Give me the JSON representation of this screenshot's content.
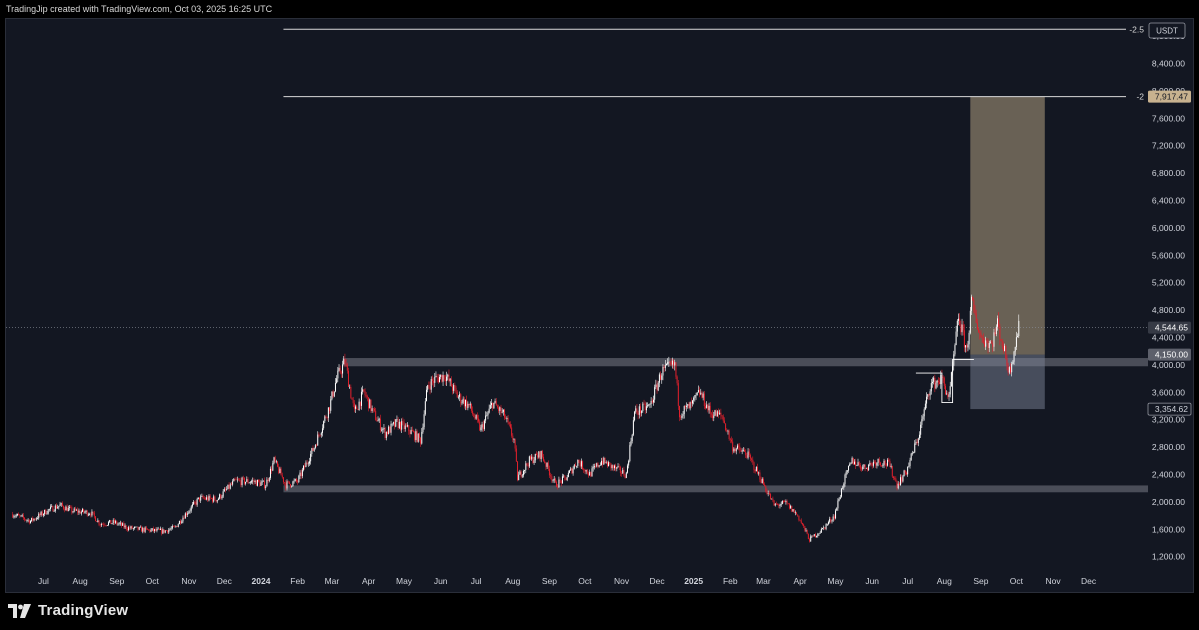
{
  "header": {
    "attribution": "TradingJip created with TradingView.com, Oct 03, 2025 16:25 UTC"
  },
  "footer": {
    "brand": "TradingView"
  },
  "colors": {
    "background": "#131722",
    "up": "#ffffff",
    "down": "#e0202c",
    "zone": "#5d606b",
    "projection": "#c8b28f",
    "price_label": "#363a45"
  },
  "chart_data": {
    "type": "candlestick",
    "currency": "USDT",
    "x_axis": {
      "range": [
        "2023-06-01",
        "2025-12-31"
      ],
      "ticks": [
        {
          "date": "2023-07-01",
          "label": "Jul"
        },
        {
          "date": "2023-08-01",
          "label": "Aug"
        },
        {
          "date": "2023-09-01",
          "label": "Sep"
        },
        {
          "date": "2023-10-01",
          "label": "Oct"
        },
        {
          "date": "2023-11-01",
          "label": "Nov"
        },
        {
          "date": "2023-12-01",
          "label": "Dec"
        },
        {
          "date": "2024-01-01",
          "label": "2024"
        },
        {
          "date": "2024-02-01",
          "label": "Feb"
        },
        {
          "date": "2024-03-01",
          "label": "Mar"
        },
        {
          "date": "2024-04-01",
          "label": "Apr"
        },
        {
          "date": "2024-05-01",
          "label": "May"
        },
        {
          "date": "2024-06-01",
          "label": "Jun"
        },
        {
          "date": "2024-07-01",
          "label": "Jul"
        },
        {
          "date": "2024-08-01",
          "label": "Aug"
        },
        {
          "date": "2024-09-01",
          "label": "Sep"
        },
        {
          "date": "2024-10-01",
          "label": "Oct"
        },
        {
          "date": "2024-11-01",
          "label": "Nov"
        },
        {
          "date": "2024-12-01",
          "label": "Dec"
        },
        {
          "date": "2025-01-01",
          "label": "2025"
        },
        {
          "date": "2025-02-01",
          "label": "Feb"
        },
        {
          "date": "2025-03-01",
          "label": "Mar"
        },
        {
          "date": "2025-04-01",
          "label": "Apr"
        },
        {
          "date": "2025-05-01",
          "label": "May"
        },
        {
          "date": "2025-06-01",
          "label": "Jun"
        },
        {
          "date": "2025-07-01",
          "label": "Jul"
        },
        {
          "date": "2025-08-01",
          "label": "Aug"
        },
        {
          "date": "2025-09-01",
          "label": "Sep"
        },
        {
          "date": "2025-10-01",
          "label": "Oct"
        },
        {
          "date": "2025-11-01",
          "label": "Nov"
        },
        {
          "date": "2025-12-01",
          "label": "Dec"
        }
      ]
    },
    "y_axis": {
      "ticks": [
        "1,200.00",
        "1,600.00",
        "2,000.00",
        "2,400.00",
        "2,800.00",
        "3,200.00",
        "3,600.00",
        "4,000.00",
        "4,400.00",
        "4,800.00",
        "5,200.00",
        "5,600.00",
        "6,000.00",
        "6,400.00",
        "6,800.00",
        "7,200.00",
        "7,600.00",
        "8,000.00",
        "8,400.00",
        "8,800.00"
      ],
      "range": [
        1020,
        9050
      ]
    },
    "series": [
      {
        "kind": "daily_close_approx",
        "points": [
          [
            "2023-06-05",
            1820
          ],
          [
            "2023-06-20",
            1720
          ],
          [
            "2023-07-05",
            1880
          ],
          [
            "2023-07-15",
            1950
          ],
          [
            "2023-07-25",
            1870
          ],
          [
            "2023-08-10",
            1840
          ],
          [
            "2023-08-18",
            1680
          ],
          [
            "2023-08-30",
            1700
          ],
          [
            "2023-09-10",
            1620
          ],
          [
            "2023-09-25",
            1590
          ],
          [
            "2023-10-10",
            1570
          ],
          [
            "2023-10-20",
            1620
          ],
          [
            "2023-10-28",
            1800
          ],
          [
            "2023-11-10",
            2050
          ],
          [
            "2023-11-25",
            2040
          ],
          [
            "2023-12-10",
            2300
          ],
          [
            "2023-12-25",
            2300
          ],
          [
            "2024-01-05",
            2250
          ],
          [
            "2024-01-12",
            2600
          ],
          [
            "2024-01-22",
            2250
          ],
          [
            "2024-02-01",
            2300
          ],
          [
            "2024-02-15",
            2800
          ],
          [
            "2024-02-28",
            3400
          ],
          [
            "2024-03-05",
            3800
          ],
          [
            "2024-03-12",
            4050
          ],
          [
            "2024-03-20",
            3300
          ],
          [
            "2024-03-28",
            3600
          ],
          [
            "2024-04-05",
            3300
          ],
          [
            "2024-04-15",
            3000
          ],
          [
            "2024-04-25",
            3150
          ],
          [
            "2024-05-05",
            3050
          ],
          [
            "2024-05-15",
            2900
          ],
          [
            "2024-05-21",
            3700
          ],
          [
            "2024-05-28",
            3800
          ],
          [
            "2024-06-05",
            3850
          ],
          [
            "2024-06-15",
            3550
          ],
          [
            "2024-06-25",
            3400
          ],
          [
            "2024-07-05",
            3050
          ],
          [
            "2024-07-15",
            3450
          ],
          [
            "2024-07-25",
            3250
          ],
          [
            "2024-08-02",
            2900
          ],
          [
            "2024-08-05",
            2350
          ],
          [
            "2024-08-15",
            2600
          ],
          [
            "2024-08-25",
            2700
          ],
          [
            "2024-09-06",
            2250
          ],
          [
            "2024-09-15",
            2350
          ],
          [
            "2024-09-25",
            2600
          ],
          [
            "2024-10-05",
            2400
          ],
          [
            "2024-10-15",
            2600
          ],
          [
            "2024-10-25",
            2500
          ],
          [
            "2024-11-05",
            2400
          ],
          [
            "2024-11-12",
            3300
          ],
          [
            "2024-11-25",
            3400
          ],
          [
            "2024-12-05",
            3900
          ],
          [
            "2024-12-16",
            4000
          ],
          [
            "2024-12-20",
            3300
          ],
          [
            "2024-12-30",
            3400
          ],
          [
            "2025-01-06",
            3600
          ],
          [
            "2025-01-15",
            3300
          ],
          [
            "2025-01-25",
            3250
          ],
          [
            "2025-02-03",
            2800
          ],
          [
            "2025-02-15",
            2700
          ],
          [
            "2025-02-25",
            2400
          ],
          [
            "2025-03-10",
            1950
          ],
          [
            "2025-03-20",
            1980
          ],
          [
            "2025-03-30",
            1800
          ],
          [
            "2025-04-09",
            1450
          ],
          [
            "2025-04-20",
            1600
          ],
          [
            "2025-04-30",
            1800
          ],
          [
            "2025-05-08",
            2300
          ],
          [
            "2025-05-15",
            2600
          ],
          [
            "2025-05-25",
            2500
          ],
          [
            "2025-06-05",
            2600
          ],
          [
            "2025-06-15",
            2550
          ],
          [
            "2025-06-22",
            2250
          ],
          [
            "2025-06-30",
            2450
          ],
          [
            "2025-07-10",
            2950
          ],
          [
            "2025-07-20",
            3700
          ],
          [
            "2025-07-30",
            3800
          ],
          [
            "2025-08-05",
            3500
          ],
          [
            "2025-08-13",
            4700
          ],
          [
            "2025-08-20",
            4200
          ],
          [
            "2025-08-24",
            4900
          ],
          [
            "2025-09-01",
            4400
          ],
          [
            "2025-09-10",
            4300
          ],
          [
            "2025-09-15",
            4600
          ],
          [
            "2025-09-25",
            3900
          ],
          [
            "2025-10-03",
            4544.65
          ]
        ]
      }
    ],
    "annotations": {
      "fib_levels": [
        {
          "label": "-2.5",
          "value": 8900,
          "start": "2024-01-20"
        },
        {
          "label": "-2",
          "value": 7917.47,
          "start": "2024-01-20"
        }
      ],
      "support_zones": [
        {
          "from": "2024-03-10",
          "to": "2025-11-30",
          "low": 3980,
          "high": 4100
        },
        {
          "from": "2024-01-20",
          "to": "2025-11-30",
          "low": 2140,
          "high": 2240
        }
      ],
      "position": {
        "from": "2025-08-23",
        "to": "2025-10-25",
        "entry": 4150,
        "target": 7917.47,
        "stop": 3354.62
      },
      "step_line": [
        [
          "2025-07-08",
          3880
        ],
        [
          "2025-07-30",
          3880
        ],
        [
          "2025-07-30",
          3450
        ],
        [
          "2025-08-08",
          3450
        ],
        [
          "2025-08-08",
          4080
        ],
        [
          "2025-08-26",
          4080
        ]
      ],
      "last_price": 4544.65
    },
    "price_labels": [
      {
        "text": "7,917.47",
        "value": 7917.47,
        "style": "target"
      },
      {
        "text": "4,544.65",
        "value": 4544.65,
        "style": "last"
      },
      {
        "text": "4,150.00",
        "value": 4150,
        "style": "entry"
      },
      {
        "text": "3,354.62",
        "value": 3354.62,
        "style": "stop"
      }
    ]
  }
}
